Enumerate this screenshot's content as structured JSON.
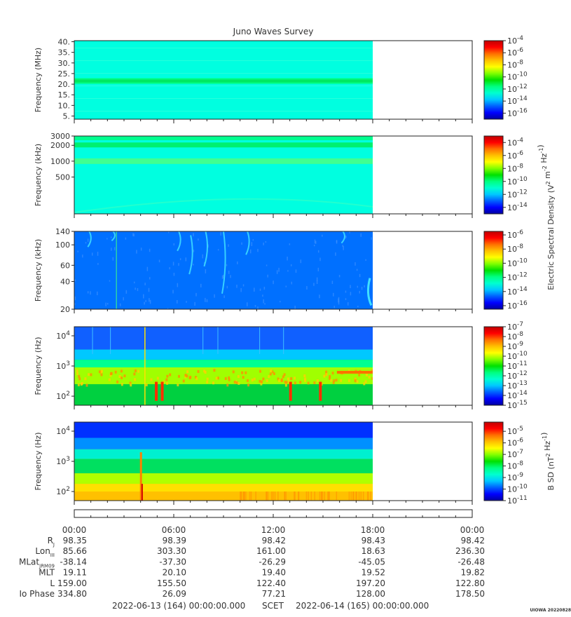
{
  "title": "Juno Waves Survey",
  "footer": {
    "start": "2022-06-13 (164) 00:00:00.000",
    "mid": "SCET",
    "end": "2022-06-14 (165) 00:00:00.000",
    "stamp": "UIOWA 20220828"
  },
  "colors": {
    "frame": "#222222",
    "background": "#ffffff",
    "colormap": [
      "#0000a0",
      "#0000ff",
      "#0060ff",
      "#00c8ff",
      "#00ffd0",
      "#00ff80",
      "#00e000",
      "#80ff00",
      "#ffff00",
      "#ffc000",
      "#ff7000",
      "#ff0000",
      "#c00000"
    ]
  },
  "chart_data": [
    {
      "type": "heatmap",
      "title": "Juno Waves Survey",
      "ylabel": "Frequency (MHz)",
      "yscale": "linear",
      "ylim": [
        3.5,
        40.5
      ],
      "yticks": [
        "40.",
        "35.",
        "30.",
        "25.",
        "20.",
        "15.",
        "10.",
        "5."
      ],
      "ytick_values": [
        40,
        35,
        30,
        25,
        20,
        15,
        10,
        5
      ],
      "data_end_fraction": 0.75,
      "colorbar": {
        "labels": [
          "10^-4",
          "10^-6",
          "10^-8",
          "10^-10",
          "10^-12",
          "10^-14",
          "10^-16"
        ],
        "range": [
          -17,
          -4
        ]
      }
    },
    {
      "type": "heatmap",
      "ylabel": "Frequency (kHz)",
      "yscale": "log",
      "ylim": [
        100,
        3000
      ],
      "yticks": [
        "3000",
        "2000",
        "1000",
        "500"
      ],
      "ytick_values": [
        3000,
        2000,
        1000,
        500
      ],
      "data_end_fraction": 0.75,
      "colorbar": {
        "labels": [
          "10^-4",
          "10^-6",
          "10^-8",
          "10^-10",
          "10^-12",
          "10^-14"
        ],
        "range": [
          -15,
          -3
        ]
      }
    },
    {
      "type": "heatmap",
      "ylabel": "Frequency (kHz)",
      "yscale": "log",
      "ylim": [
        20,
        140
      ],
      "yticks": [
        "140",
        "100",
        "60",
        "40",
        "20"
      ],
      "ytick_values": [
        140,
        100,
        60,
        40,
        20
      ],
      "data_end_fraction": 0.75,
      "colorbar": {
        "labels": [
          "10^-6",
          "10^-8",
          "10^-10",
          "10^-12",
          "10^-14",
          "10^-16"
        ],
        "range": [
          -16.5,
          -5.5
        ]
      }
    },
    {
      "type": "heatmap",
      "ylabel": "Frequency (Hz)",
      "yscale": "log",
      "ylim": [
        50,
        20000
      ],
      "yticks": [
        "10^4",
        "10^3",
        "10^2"
      ],
      "ytick_values": [
        10000,
        1000,
        100
      ],
      "data_end_fraction": 0.75,
      "colorbar": {
        "labels": [
          "10^-7",
          "10^-8",
          "10^-9",
          "10^-10",
          "10^-11",
          "10^-12",
          "10^-13",
          "10^-14",
          "10^-15"
        ],
        "range": [
          -15,
          -7
        ]
      }
    },
    {
      "type": "heatmap",
      "ylabel": "Frequency (Hz)",
      "yscale": "log",
      "ylim": [
        50,
        20000
      ],
      "yticks": [
        "10^4",
        "10^3",
        "10^2"
      ],
      "ytick_values": [
        10000,
        1000,
        100
      ],
      "data_end_fraction": 0.75,
      "colorbar": {
        "labels": [
          "10^-5",
          "10^-6",
          "10^-7",
          "10^-8",
          "10^-9",
          "10^-10",
          "10^-11"
        ],
        "range": [
          -11,
          -4.2
        ]
      }
    }
  ],
  "colorbar_titles": {
    "electric": "Electric Spectral Density (V^2 m^-2 Hz^-1)",
    "magnetic": "B SD (nT^2 Hz^-1)"
  },
  "ephemeris": {
    "time_labels": [
      "00:00",
      "06:00",
      "12:00",
      "18:00",
      "00:00"
    ],
    "rows": [
      {
        "label": "R",
        "sub": "J",
        "values": [
          "98.35",
          "98.39",
          "98.42",
          "98.43",
          "98.42"
        ]
      },
      {
        "label": "Lon",
        "sub": "III",
        "values": [
          "85.66",
          "303.30",
          "161.00",
          "18.63",
          "236.30"
        ]
      },
      {
        "label": "MLat",
        "sub": "JRM09",
        "values": [
          "-38.14",
          "-37.30",
          "-26.29",
          "-45.05",
          "-26.48"
        ]
      },
      {
        "label": "MLT",
        "sub": "",
        "values": [
          "19.11",
          "20.10",
          "19.40",
          "19.52",
          "19.82"
        ]
      },
      {
        "label": "L",
        "sub": "",
        "values": [
          "159.00",
          "155.50",
          "122.40",
          "197.20",
          "122.80"
        ]
      },
      {
        "label": "Io Phase",
        "sub": "",
        "values": [
          "334.80",
          "26.09",
          "77.21",
          "128.00",
          "178.50"
        ]
      }
    ]
  }
}
